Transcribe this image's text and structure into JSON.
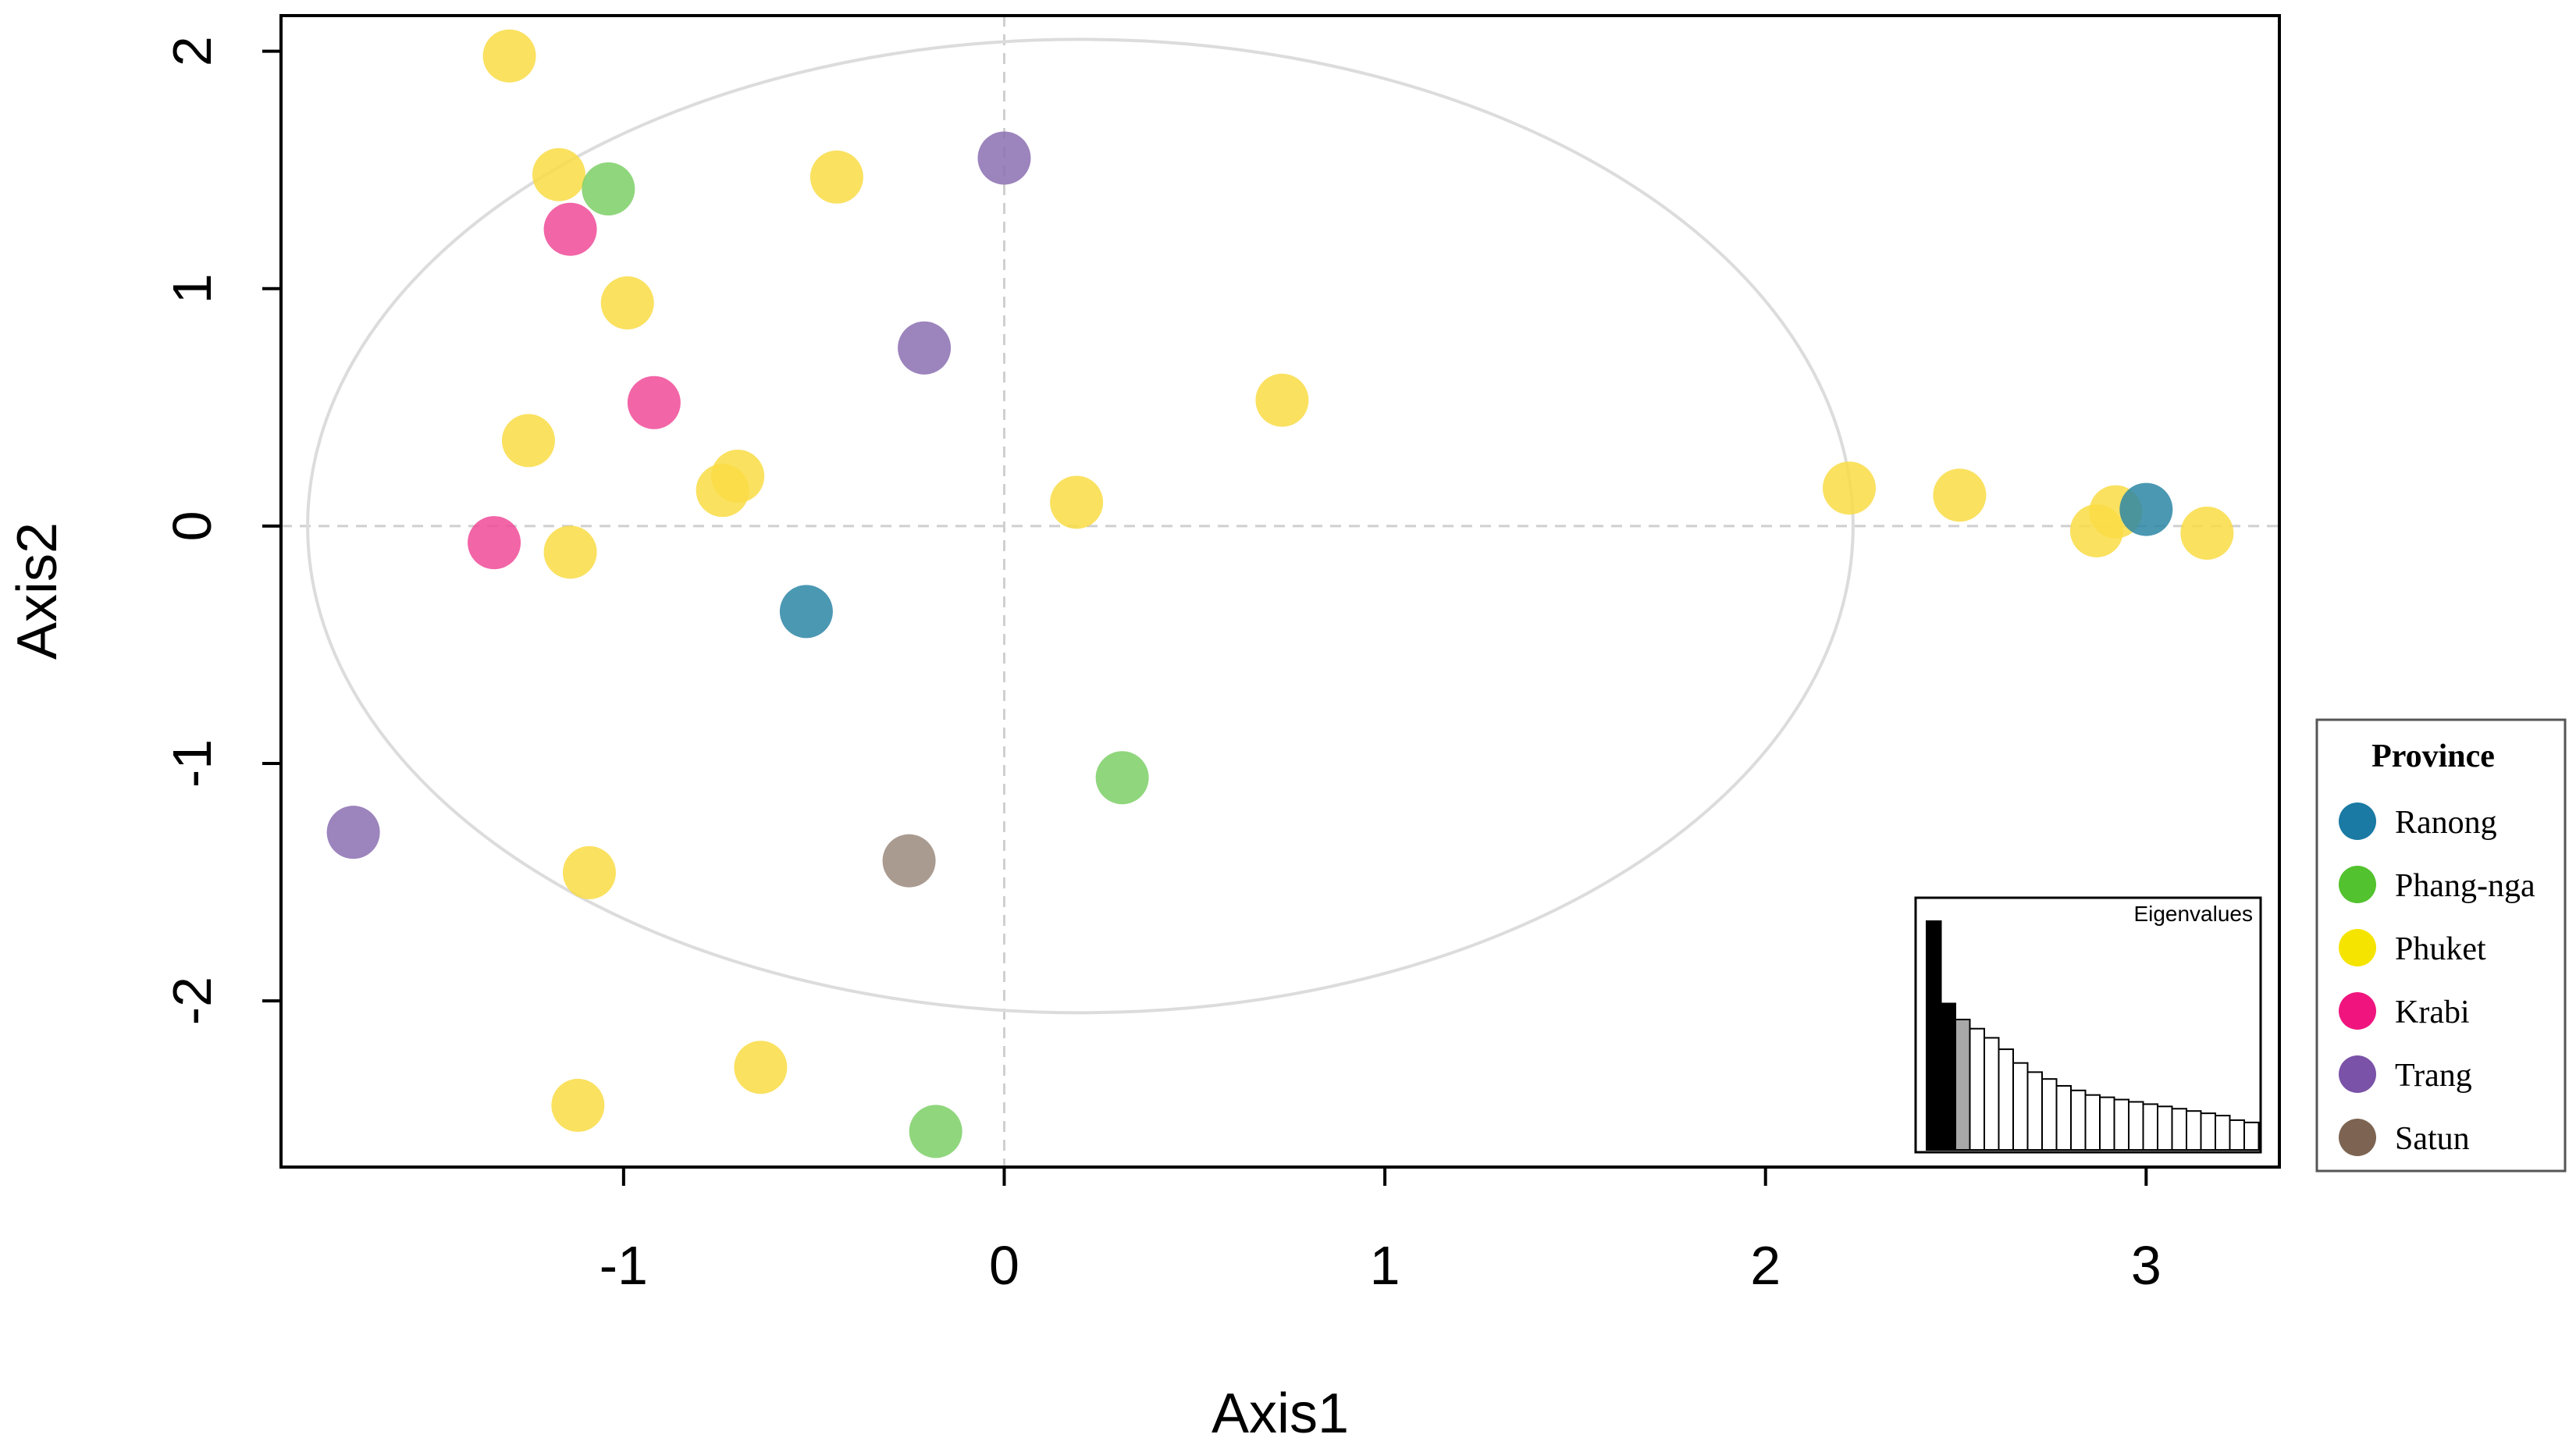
{
  "chart_data": [
    {
      "type": "scatter",
      "title": "",
      "xlabel": "Axis1",
      "ylabel": "Axis2",
      "xlim": [
        -1.9,
        3.35
      ],
      "ylim": [
        -2.7,
        2.15
      ],
      "x_ticks": [
        -1,
        0,
        1,
        2,
        3
      ],
      "y_ticks": [
        -2,
        -1,
        0,
        1,
        2
      ],
      "x_tick_labels": [
        "-1",
        "0",
        "1",
        "2",
        "3"
      ],
      "y_tick_labels": [
        "-2",
        "-1",
        "0",
        "1",
        "2"
      ],
      "grid": false,
      "reference_lines": {
        "x": 0,
        "y": 0,
        "style": "dashed"
      },
      "ellipse": {
        "cx": 0.2,
        "cy": 0,
        "rx": 2.03,
        "ry": 2.05
      },
      "legend": {
        "title": "Province",
        "position": "right",
        "entries": [
          {
            "label": "Ranong",
            "color": "#1a7aa3"
          },
          {
            "label": "Phang-nga",
            "color": "#52c22e"
          },
          {
            "label": "Phuket",
            "color": "#f5e400"
          },
          {
            "label": "Krabi",
            "color": "#f0157e"
          },
          {
            "label": "Trang",
            "color": "#7a52a8"
          },
          {
            "label": "Satun",
            "color": "#7d6452"
          }
        ]
      },
      "point_colors": {
        "Ranong": "#2b86a6",
        "Phang-nga": "#7ccf66",
        "Phuket": "#f9dc44",
        "Krabi": "#f04a98",
        "Trang": "#8b6fb1",
        "Satun": "#9b8a7e"
      },
      "series": [
        {
          "name": "Phuket",
          "points": [
            [
              -1.3,
              1.98
            ],
            [
              -1.17,
              1.48
            ],
            [
              -0.44,
              1.47
            ],
            [
              -0.99,
              0.94
            ],
            [
              -1.25,
              0.36
            ],
            [
              -0.7,
              0.21
            ],
            [
              -0.74,
              0.15
            ],
            [
              0.19,
              0.1
            ],
            [
              0.73,
              0.53
            ],
            [
              -1.14,
              -0.11
            ],
            [
              -1.09,
              -1.46
            ],
            [
              -0.64,
              -2.28
            ],
            [
              -1.12,
              -2.44
            ],
            [
              2.22,
              0.16
            ],
            [
              2.51,
              0.13
            ],
            [
              2.87,
              -0.02
            ],
            [
              2.92,
              0.06
            ],
            [
              3.16,
              -0.03
            ]
          ]
        },
        {
          "name": "Phang-nga",
          "points": [
            [
              -1.04,
              1.42
            ],
            [
              0.31,
              -1.06
            ],
            [
              -0.18,
              -2.55
            ]
          ]
        },
        {
          "name": "Krabi",
          "points": [
            [
              -1.14,
              1.25
            ],
            [
              -0.92,
              0.52
            ],
            [
              -1.34,
              -0.07
            ]
          ]
        },
        {
          "name": "Trang",
          "points": [
            [
              0.0,
              1.55
            ],
            [
              -0.21,
              0.75
            ],
            [
              -1.71,
              -1.29
            ]
          ]
        },
        {
          "name": "Ranong",
          "points": [
            [
              -0.52,
              -0.36
            ],
            [
              3.0,
              0.07
            ]
          ]
        },
        {
          "name": "Satun",
          "points": [
            [
              -0.25,
              -1.41
            ]
          ]
        }
      ]
    },
    {
      "type": "bar",
      "title": "Eigenvalues",
      "values": [
        1.0,
        0.64,
        0.57,
        0.53,
        0.49,
        0.44,
        0.38,
        0.34,
        0.31,
        0.28,
        0.26,
        0.24,
        0.23,
        0.22,
        0.21,
        0.2,
        0.19,
        0.18,
        0.17,
        0.16,
        0.15,
        0.13,
        0.12
      ],
      "bar_fills": [
        "black",
        "black",
        "grey",
        "white",
        "white",
        "white",
        "white",
        "white",
        "white",
        "white",
        "white",
        "white",
        "white",
        "white",
        "white",
        "white",
        "white",
        "white",
        "white",
        "white",
        "white",
        "white",
        "white"
      ]
    }
  ]
}
